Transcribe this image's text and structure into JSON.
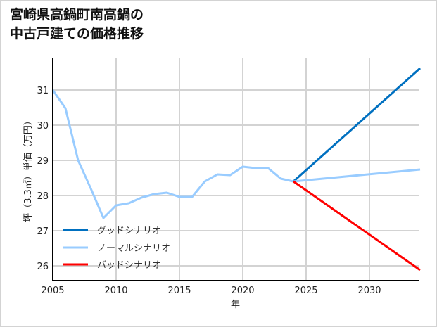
{
  "title_line1": "宮崎県高鍋町南高鍋の",
  "title_line2": "中古戸建ての価格推移",
  "chart_data": {
    "type": "line",
    "title": "宮崎県高鍋町南高鍋の中古戸建ての価格推移",
    "xlabel": "年",
    "ylabel": "坪（3.3㎡）単価（万円）",
    "xlim": [
      2005,
      2034
    ],
    "ylim": [
      25.6,
      32.0
    ],
    "x_ticks": [
      2005,
      2010,
      2015,
      2020,
      2025,
      2030
    ],
    "y_ticks": [
      26,
      27,
      28,
      29,
      30,
      31
    ],
    "grid": true,
    "legend_position": "lower left",
    "series": [
      {
        "name": "グッドシナリオ",
        "color": "#0070c0",
        "x": [
          2024,
          2034
        ],
        "values": [
          28.4,
          31.62
        ]
      },
      {
        "name": "ノーマルシナリオ",
        "color": "#99ccff",
        "x": [
          2005,
          2006,
          2007,
          2008,
          2009,
          2010,
          2011,
          2012,
          2013,
          2014,
          2015,
          2016,
          2017,
          2018,
          2019,
          2020,
          2021,
          2022,
          2023,
          2024,
          2034
        ],
        "values": [
          31.0,
          30.48,
          29.0,
          28.2,
          27.36,
          27.72,
          27.78,
          27.94,
          28.04,
          28.08,
          27.96,
          27.96,
          28.4,
          28.6,
          28.58,
          28.82,
          28.78,
          28.78,
          28.48,
          28.4,
          28.74
        ]
      },
      {
        "name": "バッドシナリオ",
        "color": "#ff0000",
        "x": [
          2024,
          2034
        ],
        "values": [
          28.4,
          25.88
        ]
      }
    ]
  }
}
